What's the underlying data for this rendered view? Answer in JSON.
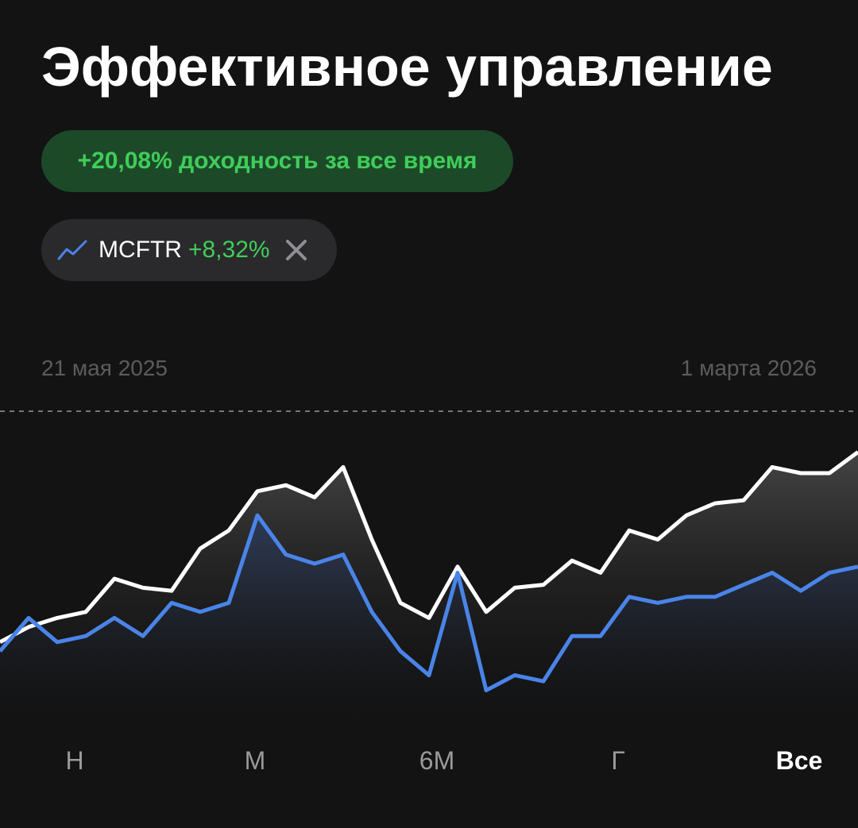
{
  "header": {
    "title": "Эффективное управление"
  },
  "return_badge": {
    "text": "+20,08% доходность за все время"
  },
  "benchmark_chip": {
    "change": "+8,32%"
  },
  "chart_data": {
    "type": "line",
    "date_range": [
      "21 мая 2025",
      "1 марта 2026"
    ],
    "ylim": [
      0,
      100
    ],
    "series": [
      {
        "color": "#ffffff",
        "values": [
          24,
          29,
          32,
          34,
          45,
          42,
          41,
          55,
          61,
          74,
          76,
          72,
          82,
          58,
          37,
          32,
          49,
          34,
          42,
          43,
          51,
          47,
          61,
          58,
          66,
          70,
          71,
          82,
          80,
          80,
          87
        ]
      },
      {
        "name": "MCFTR",
        "color": "#4a84e8",
        "values": [
          21,
          32,
          24,
          26,
          32,
          26,
          37,
          34,
          37,
          66,
          53,
          50,
          53,
          34,
          21,
          13,
          47,
          8,
          13,
          11,
          26,
          26,
          39,
          37,
          39,
          39,
          43,
          47,
          41,
          47,
          49
        ]
      }
    ]
  },
  "period_tabs": {
    "items": [
      "Н",
      "М",
      "6М",
      "Г",
      "Все"
    ],
    "active": 4
  }
}
